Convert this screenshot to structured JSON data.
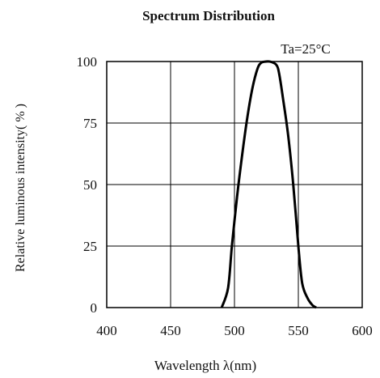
{
  "chart_data": {
    "type": "line",
    "title": "Spectrum Distribution",
    "xlabel": "Wavelength λ(nm)",
    "ylabel": "Relative luminous intensity( % )",
    "annotation": "Ta=25°C",
    "xlim": [
      400,
      600
    ],
    "ylim": [
      0,
      100
    ],
    "x_ticks": [
      400,
      450,
      500,
      550,
      600
    ],
    "x_tick_labels": [
      "400",
      "450",
      "500",
      "550",
      "600"
    ],
    "y_ticks": [
      0,
      25,
      50,
      75,
      100
    ],
    "y_tick_labels": [
      "0",
      "25",
      "50",
      "75",
      "100"
    ],
    "grid": true,
    "series": [
      {
        "color": "#000000",
        "x": [
          490,
          495,
          498,
          502,
          506,
          510,
          514,
          518,
          521,
          525,
          529,
          533,
          535,
          538,
          542,
          546,
          550,
          553,
          557,
          561,
          564
        ],
        "y": [
          0,
          8,
          25,
          45,
          62,
          77,
          89,
          97,
          99.5,
          100,
          99.8,
          98.5,
          95,
          85,
          70,
          50,
          25,
          10,
          4,
          1,
          0
        ]
      }
    ]
  }
}
